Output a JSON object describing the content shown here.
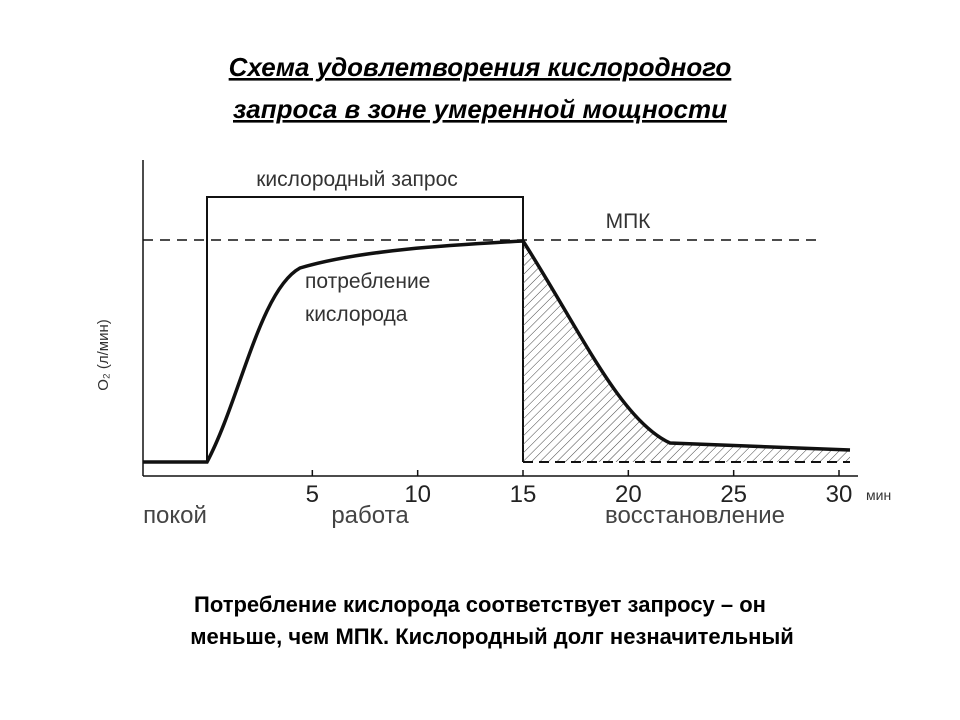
{
  "header": {
    "title": [
      "Схема удовлетворения кислородного",
      "запроса в зоне умеренной мощности"
    ]
  },
  "diagram": {
    "demand_label": "кислородный запрос",
    "vo2max_label": "МПК",
    "consumption_label": [
      "потребление",
      "кислорода"
    ],
    "y_axis_label": "O₂ (л/мин)",
    "x_ticks": [
      5,
      10,
      15,
      20,
      25,
      30
    ],
    "x_unit": "мин",
    "phases": [
      "покой",
      "работа",
      "восстановление"
    ]
  },
  "caption": [
    "Потребление кислорода соответствует запросу – он",
    "меньше, чем МПК. Кислородный долг незначительный"
  ]
}
